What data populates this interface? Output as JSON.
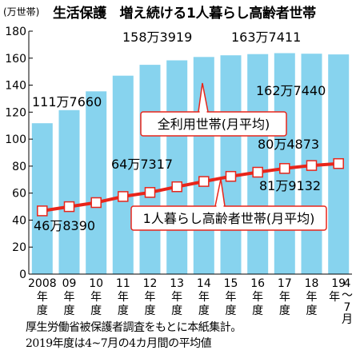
{
  "header": {
    "unit": "(万世帯)",
    "title": "生活保護　増え続ける1人暮らし高齢者世帯"
  },
  "chart_data": {
    "type": "bar",
    "unit": "万世帯",
    "categories": [
      "2008年度",
      "09年度",
      "10年度",
      "11年度",
      "12年度",
      "13年度",
      "14年度",
      "15年度",
      "16年度",
      "17年度",
      "18年度",
      "19年4~7月"
    ],
    "x_tick_top": [
      "2008",
      "09",
      "10",
      "11",
      "12",
      "13",
      "14",
      "15",
      "16",
      "17",
      "18",
      "19"
    ],
    "x_tick_bottom": [
      "年度",
      "年度",
      "年度",
      "年度",
      "年度",
      "年度",
      "年度",
      "年度",
      "年度",
      "年度",
      "年度",
      "4~7月"
    ],
    "ylim": [
      0,
      180
    ],
    "y_ticks": [
      0,
      20,
      40,
      60,
      80,
      100,
      120,
      140,
      160,
      180
    ],
    "series": [
      {
        "name": "全利用世帯(月平均)",
        "type": "bar",
        "color": "#87d3ee",
        "values": [
          111.766,
          121.5,
          135.4,
          147.0,
          155.1,
          158.3919,
          160.9,
          162.1,
          163.0,
          163.7411,
          163.3,
          162.744
        ]
      },
      {
        "name": "1人暮らし高齢者世帯(月平均)",
        "type": "line",
        "color": "#e8251a",
        "values": [
          46.839,
          50.0,
          53.0,
          57.5,
          60.5,
          64.7317,
          68.6,
          72.4,
          75.5,
          78.3,
          80.4873,
          81.9132
        ]
      }
    ],
    "data_labels": [
      {
        "text": "111万7660"
      },
      {
        "text": "158万3919"
      },
      {
        "text": "163万7411"
      },
      {
        "text": "162万7440"
      },
      {
        "text": "64万7317"
      },
      {
        "text": "80万4873"
      },
      {
        "text": "46万8390"
      },
      {
        "text": "81万9132"
      }
    ],
    "grid": false
  },
  "footer": {
    "lines": [
      "厚生労働省被保護者調査をもとに本紙集計。",
      "2019年度は4~7月の4カ月間の平均値"
    ]
  }
}
